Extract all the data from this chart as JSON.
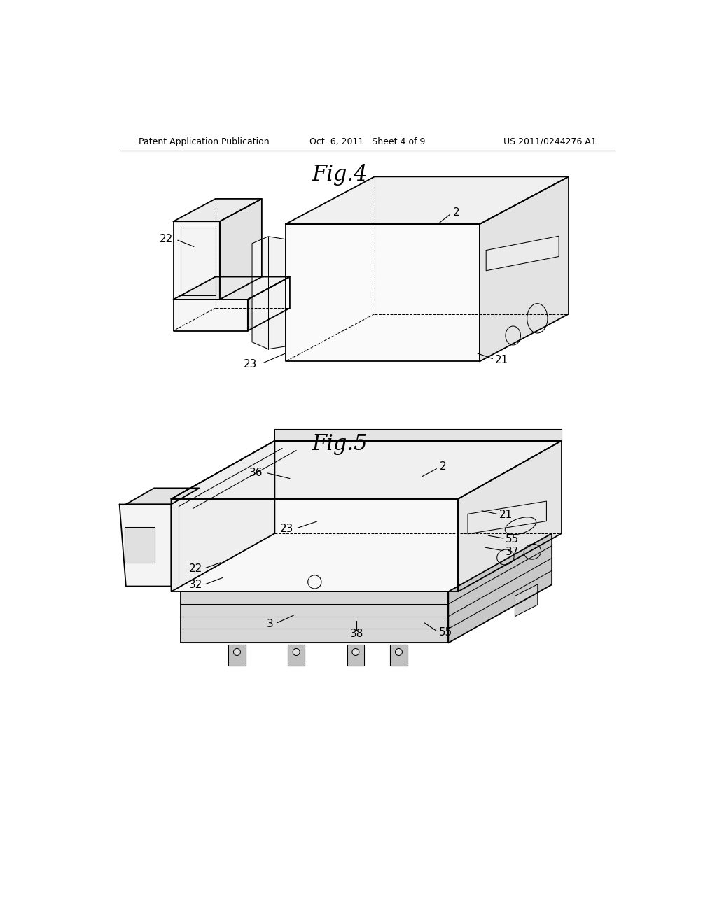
{
  "bg_color": "#ffffff",
  "line_color": "#000000",
  "header_left": "Patent Application Publication",
  "header_center": "Oct. 6, 2011   Sheet 4 of 9",
  "header_right": "US 2011/0244276 A1",
  "fig4_title": "Fig.4",
  "fig5_title": "Fig.5",
  "label_fs": 11,
  "header_fs": 9,
  "title_fs": 22,
  "lw_main": 1.3,
  "lw_thin": 0.75,
  "fc_top": "#efefef",
  "fc_right": "#e0e0e0",
  "fc_front": "#f8f8f8",
  "fc_left": "#f0f0f0"
}
